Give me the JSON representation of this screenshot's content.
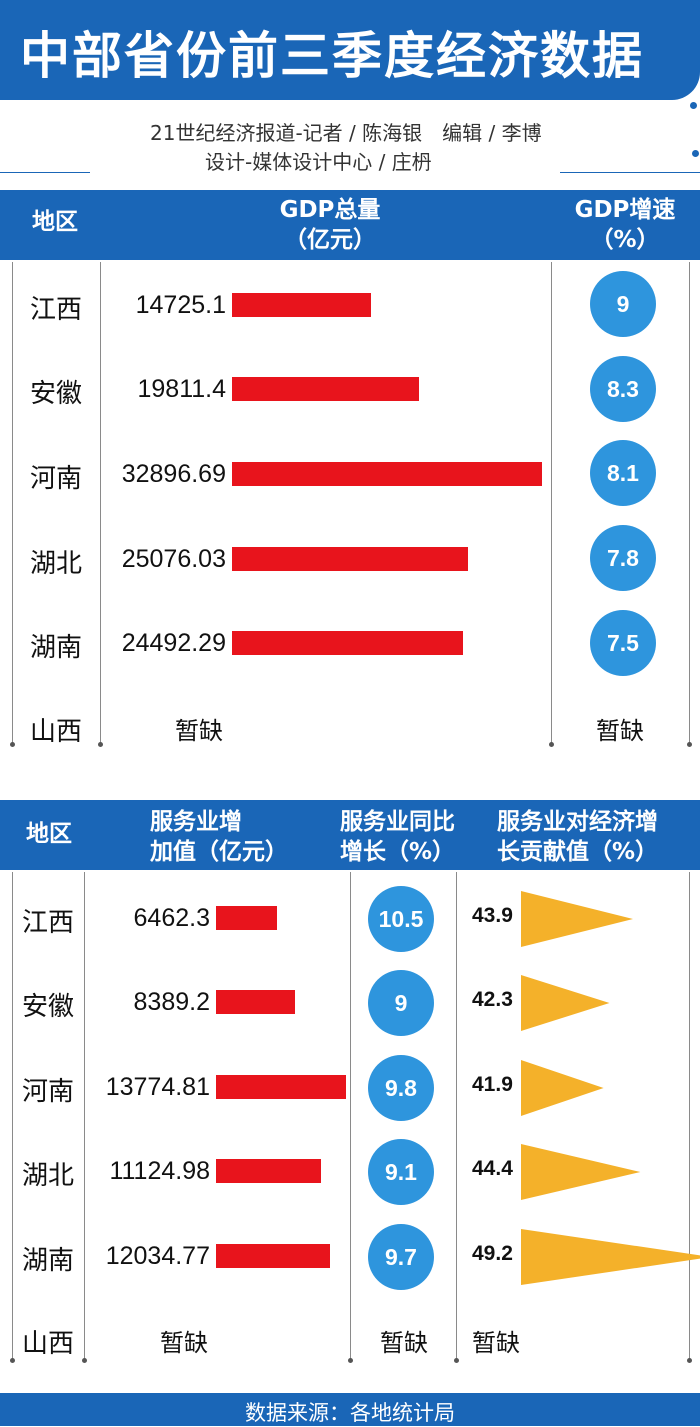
{
  "title": "中部省份前三季度经济数据",
  "credits": {
    "line1": "21世纪经济报道-记者 / 陈海银　编辑 / 李博",
    "line2": "设计-媒体设计中心 / 庄枬"
  },
  "colors": {
    "header": "#1a66b7",
    "bar": "#e8141c",
    "circle": "#2e95dd",
    "triangle": "#f4b12a"
  },
  "table1": {
    "headers": {
      "region": "地区",
      "gdp": "GDP总量（亿元）",
      "growth": "GDP增速（%）"
    },
    "header_lines": {
      "gdp_1": "GDP总量",
      "gdp_2": "（亿元）",
      "growth_1": "GDP增速",
      "growth_2": "（%）"
    },
    "na_label": "暂缺"
  },
  "table2": {
    "headers": {
      "region": "地区",
      "value": "服务业增加值（亿元）",
      "growth": "服务业同比增长（%）",
      "contrib": "服务业对经济增长贡献值（%）"
    },
    "header_lines": {
      "value_1": "服务业增",
      "value_2": "加值（亿元）",
      "growth_1": "服务业同比",
      "growth_2": "增长（%）",
      "contrib_1": "服务业对经济增",
      "contrib_2": "长贡献值（%）"
    },
    "na_label": "暂缺"
  },
  "chart_data": [
    {
      "type": "table",
      "columns": [
        "地区",
        "GDP总量（亿元）",
        "GDP增速（%）"
      ],
      "rows": [
        {
          "region": "江西",
          "gdp": "14725.1",
          "growth": "9"
        },
        {
          "region": "安徽",
          "gdp": "19811.4",
          "growth": "8.3"
        },
        {
          "region": "河南",
          "gdp": "32896.69",
          "growth": "8.1"
        },
        {
          "region": "湖北",
          "gdp": "25076.03",
          "growth": "7.8"
        },
        {
          "region": "湖南",
          "gdp": "24492.29",
          "growth": "7.5"
        },
        {
          "region": "山西",
          "gdp": "暂缺",
          "growth": "暂缺"
        }
      ]
    },
    {
      "type": "table",
      "columns": [
        "地区",
        "服务业增加值（亿元）",
        "服务业同比增长（%）",
        "服务业对经济增长贡献值（%）"
      ],
      "rows": [
        {
          "region": "江西",
          "value": "6462.3",
          "growth": "10.5",
          "contrib": "43.9"
        },
        {
          "region": "安徽",
          "value": "8389.2",
          "growth": "9",
          "contrib": "42.3"
        },
        {
          "region": "河南",
          "value": "13774.81",
          "growth": "9.8",
          "contrib": "41.9"
        },
        {
          "region": "湖北",
          "value": "11124.98",
          "growth": "9.1",
          "contrib": "44.4"
        },
        {
          "region": "湖南",
          "value": "12034.77",
          "growth": "9.7",
          "contrib": "49.2"
        },
        {
          "region": "山西",
          "value": "暂缺",
          "growth": "暂缺",
          "contrib": "暂缺"
        }
      ]
    }
  ],
  "footer": "数据来源：各地统计局"
}
